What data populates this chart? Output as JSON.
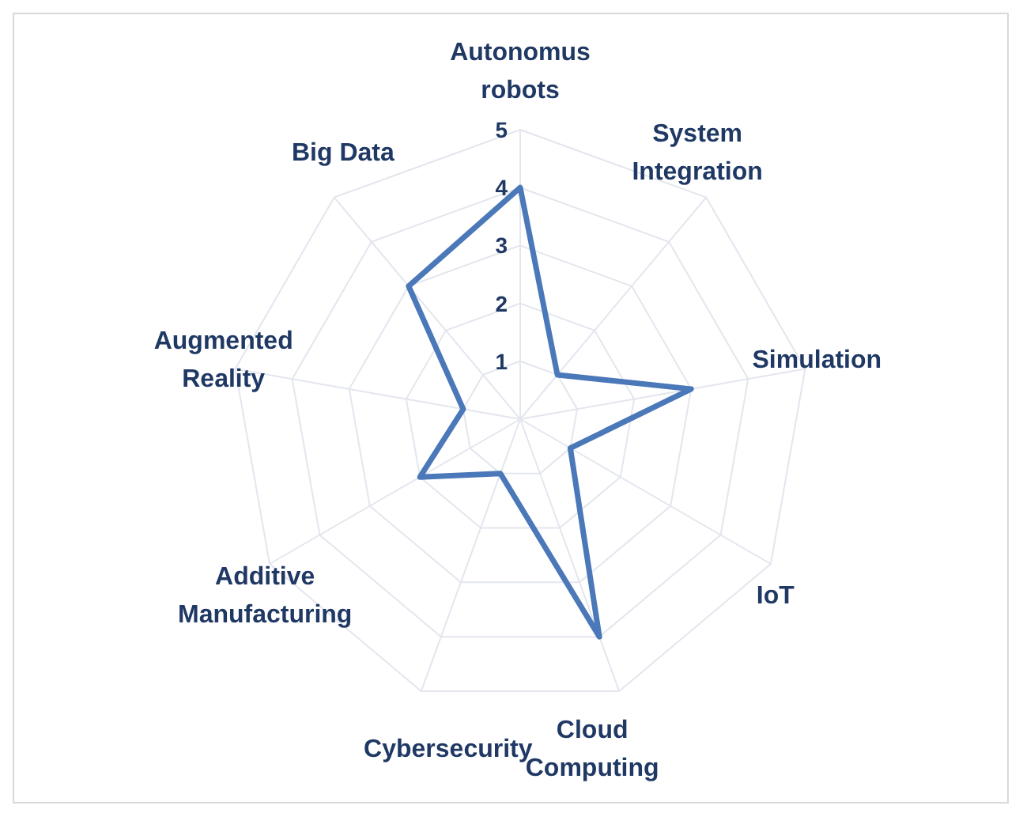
{
  "chart_data": {
    "type": "radar",
    "categories": [
      "Autonomus robots",
      "System Integration",
      "Simulation",
      "IoT",
      "Cloud Computing",
      "Cybersecurity",
      "Additive Manufacturing",
      "Augmented Reality",
      "Big Data"
    ],
    "series": [
      {
        "color": "#4a78b8",
        "values": [
          4,
          1,
          3,
          1,
          4,
          1,
          2,
          1,
          3
        ]
      }
    ],
    "ylim": [
      0,
      5
    ],
    "yticks": [
      1,
      2,
      3,
      4,
      5
    ],
    "grid": true
  }
}
